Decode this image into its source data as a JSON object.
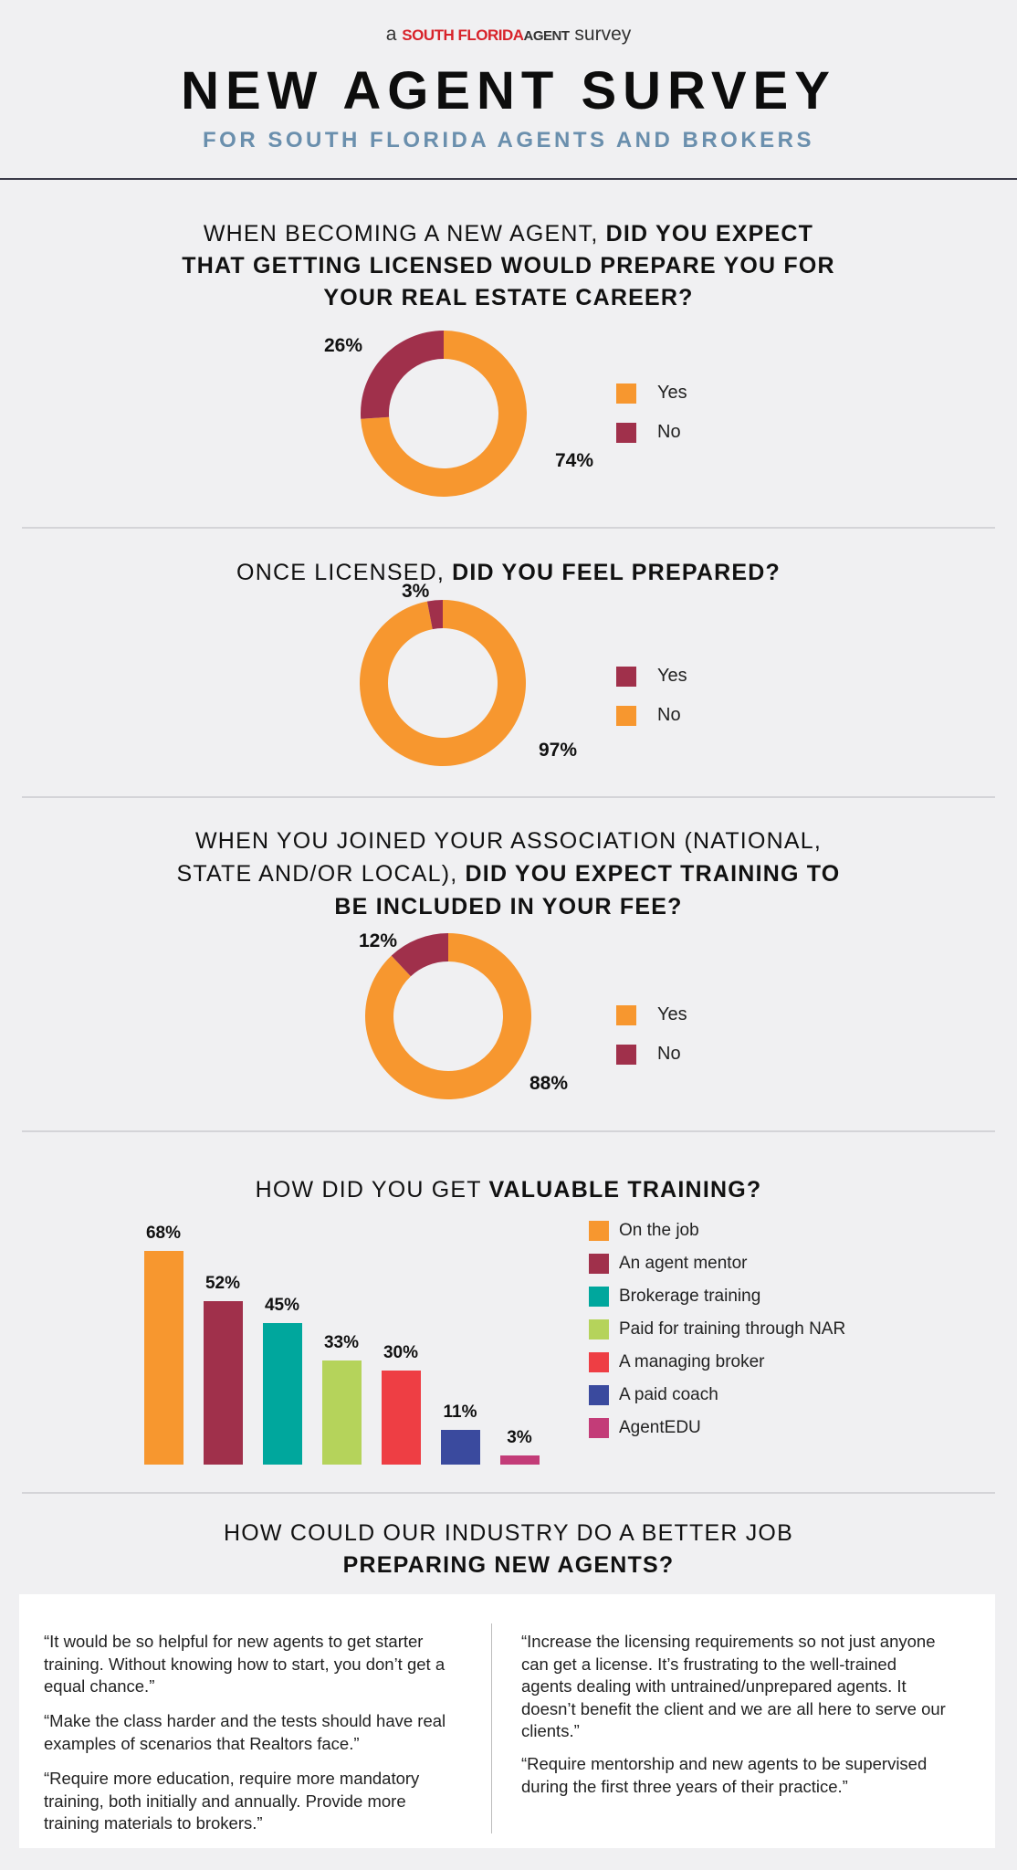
{
  "header": {
    "brand_prefix": "a",
    "brand_name": "SOUTH FLORIDA",
    "brand_agent": "AGENT",
    "brand_suffix": "survey",
    "title": "NEW AGENT SURVEY",
    "subtitle": "FOR SOUTH FLORIDA AGENTS AND BROKERS"
  },
  "colors": {
    "orange": "#f7972f",
    "maroon": "#a0304b",
    "teal": "#00a79d",
    "lime": "#b5d35b",
    "red": "#ee3e44",
    "blue": "#3a4a9e",
    "pink": "#c33c78"
  },
  "chart_data": [
    {
      "type": "pie",
      "title_lines": [
        {
          "normal": "WHEN BECOMING A NEW AGENT, ",
          "bold": "DID YOU EXPECT"
        },
        {
          "normal": "",
          "bold": "THAT GETTING LICENSED WOULD PREPARE YOU FOR"
        },
        {
          "normal": "",
          "bold": "YOUR REAL ESTATE CAREER?"
        }
      ],
      "slices": [
        {
          "label": "Yes",
          "value": 74,
          "text": "74%",
          "color": "#f7972f"
        },
        {
          "label": "No",
          "value": 26,
          "text": "26%",
          "color": "#a0304b"
        }
      ],
      "legend": [
        {
          "label": "Yes",
          "color": "#f7972f"
        },
        {
          "label": "No",
          "color": "#a0304b"
        }
      ]
    },
    {
      "type": "pie",
      "title_lines": [
        {
          "normal": "ONCE LICENSED, ",
          "bold": "DID YOU FEEL PREPARED?"
        }
      ],
      "slices": [
        {
          "label": "No",
          "value": 97,
          "text": "97%",
          "color": "#f7972f"
        },
        {
          "label": "Yes",
          "value": 3,
          "text": "3%",
          "color": "#a0304b"
        }
      ],
      "legend": [
        {
          "label": "Yes",
          "color": "#a0304b"
        },
        {
          "label": "No",
          "color": "#f7972f"
        }
      ]
    },
    {
      "type": "pie",
      "title_lines": [
        {
          "normal": "WHEN YOU JOINED YOUR ASSOCIATION (NATIONAL,",
          "bold": ""
        },
        {
          "normal": "STATE AND/OR LOCAL), ",
          "bold": "DID YOU EXPECT TRAINING TO"
        },
        {
          "normal": "",
          "bold": "BE INCLUDED IN YOUR FEE?"
        }
      ],
      "slices": [
        {
          "label": "Yes",
          "value": 88,
          "text": "88%",
          "color": "#f7972f"
        },
        {
          "label": "No",
          "value": 12,
          "text": "12%",
          "color": "#a0304b"
        }
      ],
      "legend": [
        {
          "label": "Yes",
          "color": "#f7972f"
        },
        {
          "label": "No",
          "color": "#a0304b"
        }
      ]
    },
    {
      "type": "bar",
      "title_lines": [
        {
          "normal": "HOW DID YOU GET ",
          "bold": "VALUABLE TRAINING?"
        }
      ],
      "categories": [
        "On the job",
        "An agent mentor",
        "Brokerage training",
        "Paid for training through NAR",
        "A managing broker",
        "A paid coach",
        "AgentEDU"
      ],
      "values": [
        68,
        52,
        45,
        33,
        30,
        11,
        3
      ],
      "labels": [
        "68%",
        "52%",
        "45%",
        "33%",
        "30%",
        "11%",
        "3%"
      ],
      "colors": [
        "#f7972f",
        "#a0304b",
        "#00a79d",
        "#b5d35b",
        "#ee3e44",
        "#3a4a9e",
        "#c33c78"
      ],
      "ylim": [
        0,
        100
      ],
      "legend": "right"
    }
  ],
  "quotes_section": {
    "title_line1": "HOW COULD OUR INDUSTRY DO A BETTER JOB",
    "title_line2": "PREPARING NEW AGENTS?",
    "left": [
      "“It would be so helpful for new agents to get starter training. Without knowing how to start, you don’t get a equal chance.”",
      "“Make the class harder and the tests should have real examples of scenarios that Realtors face.”",
      "“Require more education, require more mandatory training, both initially and annually. Provide more training materials to brokers.”"
    ],
    "right": [
      "“Increase the licensing requirements so not just anyone can get a license. It’s frustrating to the well-trained agents dealing with untrained/unprepared agents. It doesn’t benefit the client and we are all here to serve our clients.”",
      "“Require mentorship and new agents to be supervised during the first three years of their practice.”"
    ]
  }
}
